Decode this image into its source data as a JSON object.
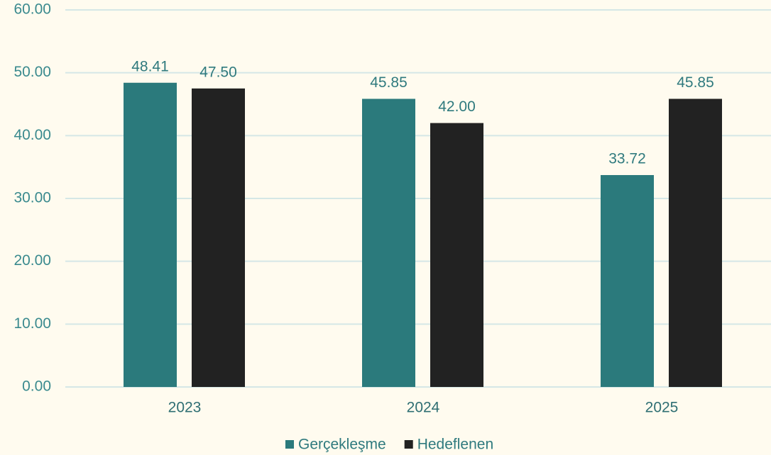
{
  "chart_data": {
    "type": "bar",
    "categories": [
      "2023",
      "2024",
      "2025"
    ],
    "series": [
      {
        "name": "Gerçekleşme",
        "color": "#2b7a7c",
        "values": [
          48.41,
          45.85,
          33.72
        ],
        "value_labels": [
          "48.41",
          "45.85",
          "33.72"
        ]
      },
      {
        "name": "Hedeflenen",
        "color": "#222222",
        "values": [
          47.5,
          42,
          45.85
        ],
        "value_labels": [
          "47.50",
          "42.00",
          "45.85"
        ]
      }
    ],
    "ylim": [
      0,
      60
    ],
    "yticks": [
      {
        "value": 0,
        "label": "0.00"
      },
      {
        "value": 10,
        "label": "10.00"
      },
      {
        "value": 20,
        "label": "20.00"
      },
      {
        "value": 30,
        "label": "30.00"
      },
      {
        "value": 40,
        "label": "40.00"
      },
      {
        "value": 50,
        "label": "50.00"
      },
      {
        "value": 60,
        "label": "60.00"
      }
    ],
    "grid": true,
    "legend": "bottom"
  }
}
